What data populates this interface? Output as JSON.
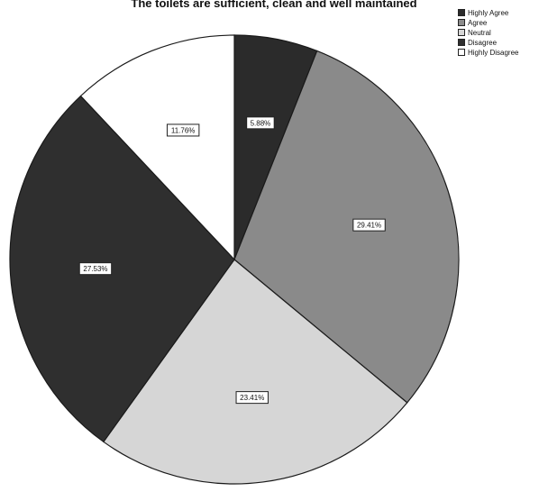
{
  "chart_data": {
    "type": "pie",
    "title": "The toilets are sufficient, clean and well maintained",
    "categories": [
      "Highly Agree",
      "Agree",
      "Neutral",
      "Disagree",
      "Highly Disagree"
    ],
    "values": [
      5.88,
      29.41,
      23.41,
      27.53,
      11.76
    ],
    "data_labels": [
      "5.88%",
      "29.41%",
      "23.41%",
      "27.53%",
      "11.76%"
    ],
    "colors": [
      "#2b2b2b",
      "#8a8a8a",
      "#d6d6d6",
      "#2f2f2f",
      "#ffffff"
    ],
    "start_angle_deg": 0,
    "direction": "clockwise",
    "legend_position": "top-right"
  }
}
